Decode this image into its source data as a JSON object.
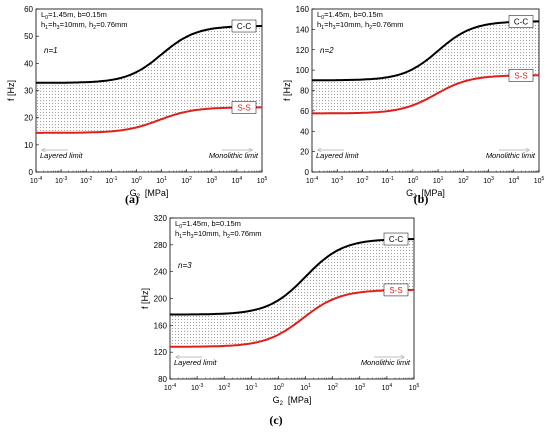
{
  "figure_labels": [
    "(a)",
    "(b)",
    "(c)"
  ],
  "chart_data": [
    {
      "type": "area",
      "xlabel": "G2 [MPa]",
      "xlabel_main": "G",
      "xlabel_sub": "2",
      "xlabel_unit": "[MPa]",
      "ylabel": "f [Hz]",
      "x_scale": "log",
      "x_exponents": [
        -4,
        -3,
        -2,
        -1,
        0,
        1,
        2,
        3,
        4,
        5
      ],
      "xlim": [
        0.0001,
        100000
      ],
      "ylim": [
        0,
        60
      ],
      "y_ticks": [
        0,
        10,
        20,
        30,
        40,
        50,
        60
      ],
      "grid": false,
      "params_line1": "L0=1.45m, b=0.15m",
      "params_line2": "h1=h3=10mm, h2=0.76mm",
      "mode": "n=1",
      "layered_label": "Layered limit",
      "monolithic_label": "Monolithic limit",
      "series": [
        {
          "name": "C-C",
          "color": "#000000",
          "low": 32.8,
          "high": 53.8,
          "center_log10": 1.0
        },
        {
          "name": "S-S",
          "color": "#e0201b",
          "low": 14.4,
          "high": 23.8,
          "center_log10": 0.9
        }
      ]
    },
    {
      "type": "area",
      "xlabel": "G2 [MPa]",
      "xlabel_main": "G",
      "xlabel_sub": "2",
      "xlabel_unit": "[MPa]",
      "ylabel": "f [Hz]",
      "x_scale": "log",
      "x_exponents": [
        -4,
        -3,
        -2,
        -1,
        0,
        1,
        2,
        3,
        4,
        5
      ],
      "xlim": [
        0.0001,
        100000
      ],
      "ylim": [
        0,
        160
      ],
      "y_ticks": [
        0,
        20,
        40,
        60,
        80,
        100,
        120,
        140,
        160
      ],
      "grid": false,
      "params_line1": "L0=1.45m, b=0.15m",
      "params_line2": "h1=h3=10mm, h2=0.76mm",
      "mode": "n=2",
      "layered_label": "Layered limit",
      "monolithic_label": "Monolithic limit",
      "series": [
        {
          "name": "C-C",
          "color": "#000000",
          "low": 90,
          "high": 148,
          "center_log10": 1.0
        },
        {
          "name": "S-S",
          "color": "#e0201b",
          "low": 57.5,
          "high": 95,
          "center_log10": 0.9
        }
      ]
    },
    {
      "type": "area",
      "xlabel": "G2 [MPa]",
      "xlabel_main": "G",
      "xlabel_sub": "2",
      "xlabel_unit": "[MPa]",
      "ylabel": "f [Hz]",
      "x_scale": "log",
      "x_exponents": [
        -4,
        -3,
        -2,
        -1,
        0,
        1,
        2,
        3,
        4,
        5
      ],
      "xlim": [
        0.0001,
        100000
      ],
      "ylim": [
        80,
        320
      ],
      "y_ticks": [
        80,
        120,
        160,
        200,
        240,
        280,
        320
      ],
      "grid": false,
      "params_line1": "L0=1.45m, b=0.15m",
      "params_line2": "h1=h3=10mm, h2=0.76mm",
      "mode": "n=3",
      "layered_label": "Layered limit",
      "monolithic_label": "Monolithic limit",
      "series": [
        {
          "name": "C-C",
          "color": "#000000",
          "low": 176,
          "high": 289,
          "center_log10": 1.0
        },
        {
          "name": "S-S",
          "color": "#e0201b",
          "low": 128,
          "high": 213,
          "center_log10": 0.9
        }
      ]
    }
  ]
}
